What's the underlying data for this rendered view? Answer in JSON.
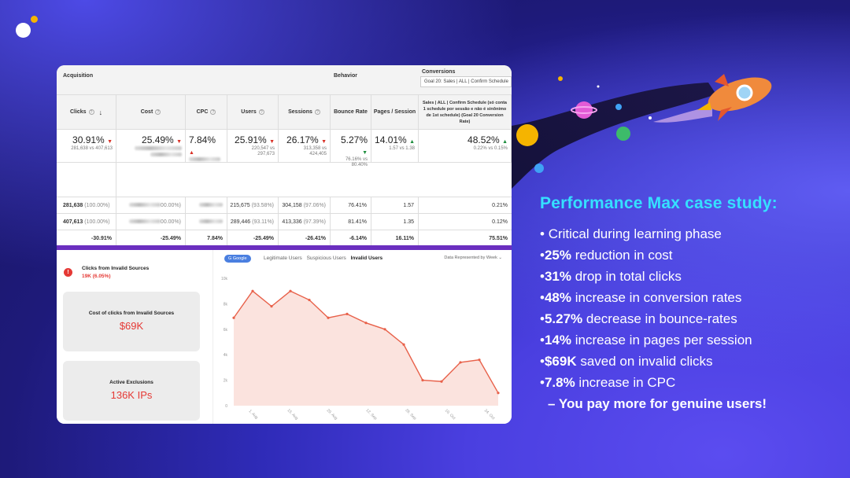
{
  "brand": {
    "logo_icon": "logo-dots-icon",
    "dot_color": "#f5b400"
  },
  "table": {
    "groups": {
      "acquisition": "Acquisition",
      "behavior": "Behavior",
      "conversions": "Conversions"
    },
    "conversion_select": "Goal 20: Sales | ALL | Confirm Schedule",
    "columns": {
      "clicks": "Clicks",
      "cost": "Cost",
      "cpc": "CPC",
      "users": "Users",
      "sessions": "Sessions",
      "bounce": "Bounce Rate",
      "pages": "Pages / Session",
      "conv": "Sales | ALL | Confirm Schedule (só conta 1 schedule por sessão e não é sinônimo de 1st schedule) (Goal 20 Conversion Rate)"
    },
    "summary": {
      "clicks": "30.91%",
      "clicks_sub": "281,638 vs 407,613",
      "cost": "25.49%",
      "cpc": "7.84%",
      "users": "25.91%",
      "users_sub1": "220,547 vs",
      "users_sub2": "297,673",
      "sessions": "26.17%",
      "sessions_sub1": "313,358 vs",
      "sessions_sub2": "424,405",
      "bounce": "5.27%",
      "bounce_sub1": "76.16% vs",
      "bounce_sub2": "80.40%",
      "pages": "14.01%",
      "pages_sub": "1.57 vs 1.38",
      "conv": "48.52%",
      "conv_sub": "0.22% vs 0.15%"
    },
    "rows": [
      {
        "clicks": "281,638",
        "clicks_pct": "(100.00%)",
        "cost_pct": "00.00%)",
        "users": "215,675",
        "users_pct": "(93.58%)",
        "sessions": "304,158",
        "sessions_pct": "(97.06%)",
        "bounce": "76.41%",
        "pages": "1.57",
        "conv": "0.21%"
      },
      {
        "clicks": "407,613",
        "clicks_pct": "(100.00%)",
        "cost_pct": "00.00%)",
        "users": "289,446",
        "users_pct": "(93.11%)",
        "sessions": "413,336",
        "sessions_pct": "(97.39%)",
        "bounce": "81.41%",
        "pages": "1.35",
        "conv": "0.12%"
      }
    ],
    "change_row": {
      "clicks": "-30.91%",
      "cost": "-25.49%",
      "cpc": "7.84%",
      "users": "-25.49%",
      "sessions": "-26.41%",
      "bounce": "-6.14%",
      "pages": "16.11%",
      "conv": "75.51%"
    }
  },
  "invalid_panel": {
    "title": "Clicks from Invalid Sources",
    "value": "19K (6.05%)",
    "cost_title": "Cost of clicks from Invalid Sources",
    "cost_value": "$69K",
    "excl_title": "Active Exclusions",
    "excl_value": "136K IPs"
  },
  "chart_panel": {
    "chip": "Google",
    "tabs": [
      "Legitimate Users",
      "Suspicious Users",
      "Invalid Users"
    ],
    "active_tab": "Invalid Users",
    "data_represented": "Data Represented by Week"
  },
  "chart_data": {
    "type": "area",
    "color": "#e8614a",
    "fill": "#fbe3de",
    "ylim": [
      0,
      10
    ],
    "yticks": [
      "0",
      "2k",
      "4k",
      "6k",
      "8k",
      "10k"
    ],
    "xticks": [
      "1. Aug",
      "15. Aug",
      "29. Aug",
      "12. Sep",
      "26. Sep",
      "10. Oct",
      "24. Oct"
    ],
    "values": [
      6.9,
      9.0,
      7.8,
      9.0,
      8.3,
      6.9,
      7.2,
      6.5,
      6.0,
      4.8,
      2.0,
      1.9,
      3.4,
      3.6,
      1.0
    ]
  },
  "headline": "Performance Max case study:",
  "bullets": [
    {
      "bold": "",
      "text": "Critical during learning phase"
    },
    {
      "bold": "25%",
      "text": " reduction in cost"
    },
    {
      "bold": "31%",
      "text": " drop in total clicks"
    },
    {
      "bold": "48%",
      "text": " increase in conversion rates"
    },
    {
      "bold": "5.27%",
      "text": " decrease in bounce-rates"
    },
    {
      "bold": "14%",
      "text": " increase in pages per session"
    },
    {
      "bold": "$69K",
      "text": " saved on invalid clicks"
    },
    {
      "bold": "7.8%",
      "text": " increase in CPC"
    }
  ],
  "note": "– You pay more for genuine users!",
  "bullet_char": "•",
  "illustration": {
    "rocket_icon": "rocket-icon",
    "planet_icons": "planet-icon"
  }
}
